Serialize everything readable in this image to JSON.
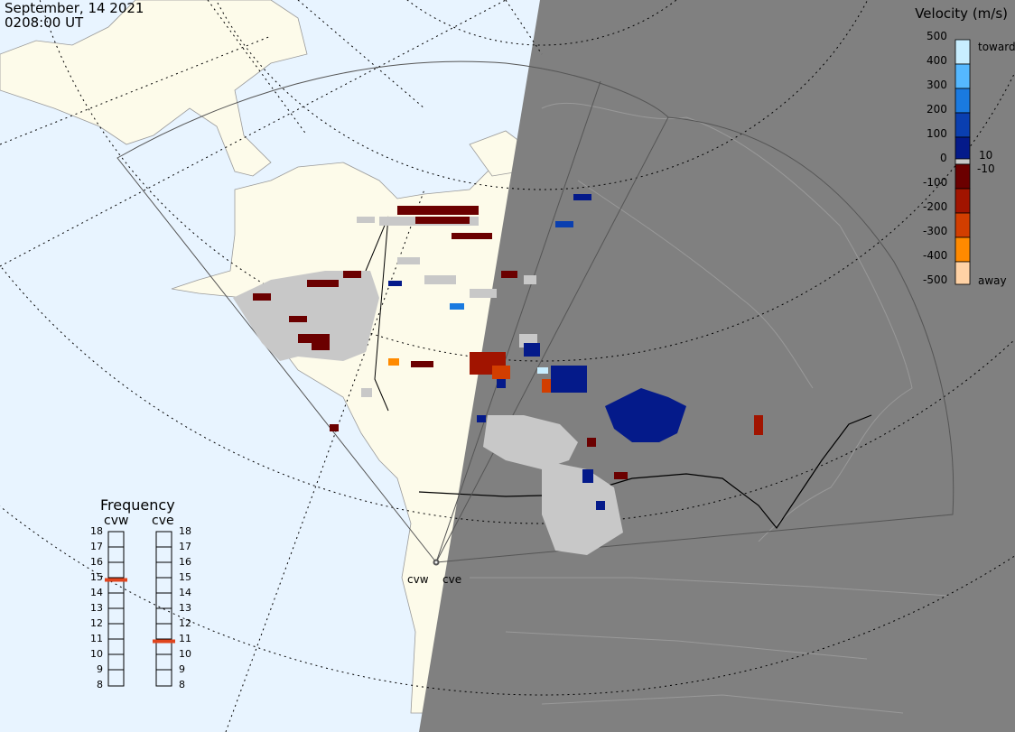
{
  "header": {
    "date": "September, 14 2021",
    "time": "0208:00 UT"
  },
  "colorbar": {
    "title": "Velocity (m/s)",
    "ticks": [
      "500",
      "400",
      "300",
      "200",
      "100",
      "0",
      "-100",
      "-200",
      "-300",
      "-400",
      "-500"
    ],
    "inner_ticks": [
      "10",
      "-10"
    ],
    "toward_label": "toward",
    "away_label": "away",
    "colors": [
      "#c8eeff",
      "#55b8ff",
      "#1a7ae0",
      "#0a3fb0",
      "#041a8a",
      "#6b0000",
      "#a11400",
      "#d23e00",
      "#ff8a00",
      "#ffd2a5"
    ],
    "zero_band_color": "#c8c8c8"
  },
  "frequency": {
    "title": "Frequency",
    "radars": [
      {
        "name": "cvw",
        "selected": 15,
        "marker_color": "#e0451e"
      },
      {
        "name": "cve",
        "selected": 11,
        "marker_color": "#e0451e"
      }
    ],
    "scale": [
      "18",
      "17",
      "16",
      "15",
      "14",
      "13",
      "12",
      "11",
      "10",
      "9",
      "8"
    ]
  },
  "radar_sites": [
    {
      "name": "cvw"
    },
    {
      "name": "cve"
    }
  ],
  "map": {
    "ocean_color": "#e8f4ff",
    "land_color": "#fdfbea",
    "night_color": "#808080",
    "ground_scatter_color": "#c8c8c8"
  }
}
